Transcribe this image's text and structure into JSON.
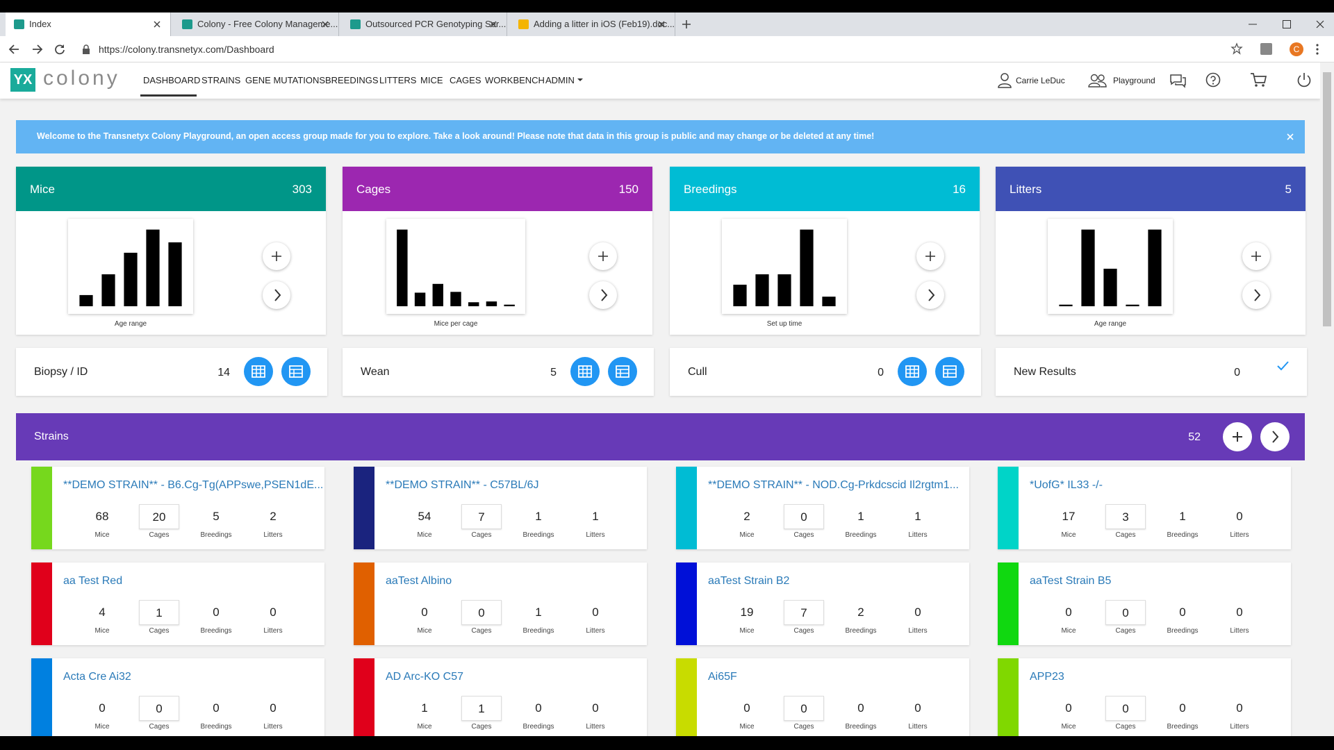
{
  "browser": {
    "tabs": [
      "Index",
      "Colony - Free Colony Manageme...",
      "Outsourced PCR Genotyping Ser...",
      "Adding a litter in iOS (Feb19).doc..."
    ],
    "url": "https://colony.transnetyx.com/Dashboard",
    "avatar": "C"
  },
  "nav": {
    "logo_mark": "YX",
    "logo_text": "colony",
    "items": [
      "DASHBOARD",
      "STRAINS",
      "GENE MUTATIONS",
      "BREEDINGS",
      "LITTERS",
      "MICE",
      "CAGES",
      "WORKBENCH",
      "ADMIN"
    ],
    "user": "Carrie LeDuc",
    "group": "Playground"
  },
  "banner": "Welcome to the Transnetyx Colony Playground, an open access group made for you to explore. Take a look around! Please note that data in this group is public and may change or be deleted at any time!",
  "summary": [
    {
      "title": "Mice",
      "count": 303,
      "color": "#009688",
      "caption": "Age range",
      "bars": [
        14,
        40,
        67,
        96,
        80
      ]
    },
    {
      "title": "Cages",
      "count": 150,
      "color": "#9c27b0",
      "caption": "Mice per cage",
      "bars": [
        96,
        17,
        28,
        18,
        5,
        6,
        2
      ]
    },
    {
      "title": "Breedings",
      "count": 16,
      "color": "#00bcd4",
      "caption": "Set up time",
      "bars": [
        27,
        40,
        40,
        96,
        12
      ]
    },
    {
      "title": "Litters",
      "count": 5,
      "color": "#3f51b5",
      "caption": "Age range",
      "bars": [
        2,
        96,
        47,
        2,
        96
      ]
    }
  ],
  "tasks": [
    {
      "label": "Biopsy / ID",
      "count": 14
    },
    {
      "label": "Wean",
      "count": 5
    },
    {
      "label": "Cull",
      "count": 0
    },
    {
      "label": "New Results",
      "count": 0
    }
  ],
  "strains": {
    "title": "Strains",
    "count": 52,
    "stat_labels": [
      "Mice",
      "Cages",
      "Breedings",
      "Litters"
    ],
    "items": [
      {
        "name": "**DEMO STRAIN** - B6.Cg-Tg(APPswe,PSEN1dE...",
        "color": "#76d81d",
        "stats": [
          68,
          20,
          5,
          2
        ]
      },
      {
        "name": "**DEMO STRAIN** - C57BL/6J",
        "color": "#1a237e",
        "stats": [
          54,
          7,
          1,
          1
        ]
      },
      {
        "name": "**DEMO STRAIN** - NOD.Cg-Prkdcscid Il2rgtm1...",
        "color": "#00bcd4",
        "stats": [
          2,
          0,
          1,
          1
        ]
      },
      {
        "name": "*UofG* IL33 -/-",
        "color": "#00d4c8",
        "stats": [
          17,
          3,
          1,
          0
        ]
      },
      {
        "name": "aa Test Red",
        "color": "#e0001b",
        "stats": [
          4,
          1,
          0,
          0
        ]
      },
      {
        "name": "aaTest Albino",
        "color": "#e06000",
        "stats": [
          0,
          0,
          1,
          0
        ]
      },
      {
        "name": "aaTest Strain B2",
        "color": "#0010d8",
        "stats": [
          19,
          7,
          2,
          0
        ]
      },
      {
        "name": "aaTest Strain B5",
        "color": "#10d810",
        "stats": [
          0,
          0,
          0,
          0
        ]
      },
      {
        "name": "Acta Cre Ai32",
        "color": "#0080e0",
        "stats": [
          0,
          0,
          0,
          0
        ]
      },
      {
        "name": "AD Arc-KO C57",
        "color": "#e0001b",
        "stats": [
          1,
          1,
          0,
          0
        ]
      },
      {
        "name": "Ai65F",
        "color": "#c8dc00",
        "stats": [
          0,
          0,
          0,
          0
        ]
      },
      {
        "name": "APP23",
        "color": "#80d800",
        "stats": [
          0,
          0,
          0,
          0
        ]
      }
    ]
  }
}
